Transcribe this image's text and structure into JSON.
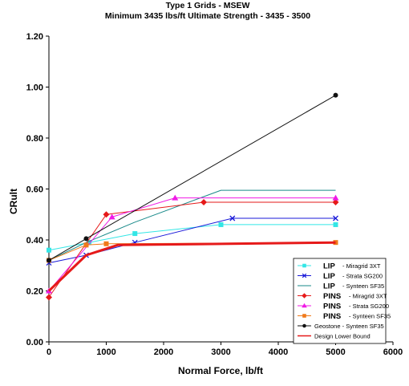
{
  "chart_data": {
    "type": "line",
    "title": "Type 1 Grids - MSEW",
    "subtitle": "Minimum 3435 lbs/ft Ultimate Strength - 3435 - 3500",
    "xlabel": "Normal Force, lb/ft",
    "ylabel": "CRult",
    "xlim": [
      0,
      6000
    ],
    "ylim": [
      0,
      1.2
    ],
    "xticks": [
      0,
      1000,
      2000,
      3000,
      4000,
      5000,
      6000
    ],
    "xtick_labels": [
      "0",
      "1000",
      "2000",
      "3000",
      "4000",
      "5000",
      "6000"
    ],
    "yticks": [
      0,
      0.2,
      0.4,
      0.6,
      0.8,
      1.0,
      1.2
    ],
    "ytick_labels": [
      "0.00",
      "0.20",
      "0.40",
      "0.60",
      "0.80",
      "1.00",
      "1.20"
    ],
    "grid": false,
    "legend_position": "bottom-right",
    "series": [
      {
        "tag": "LIP",
        "name": "- Miragrid 3XT",
        "color": "#33e6e6",
        "marker": "square",
        "width": 1,
        "x": [
          0,
          700,
          1500,
          3000,
          5000
        ],
        "y": [
          0.36,
          0.39,
          0.425,
          0.46,
          0.46
        ]
      },
      {
        "tag": "LIP",
        "name": "- Strata SG200",
        "color": "#1a1ad9",
        "marker": "x",
        "width": 1,
        "x": [
          0,
          650,
          1500,
          3200,
          5000
        ],
        "y": [
          0.31,
          0.34,
          0.39,
          0.485,
          0.485
        ]
      },
      {
        "tag": "LIP",
        "name": "- Synteen SF35",
        "color": "#1a8a8a",
        "marker": "none",
        "width": 1,
        "x": [
          0,
          650,
          1500,
          3000,
          5000
        ],
        "y": [
          0.32,
          0.39,
          0.47,
          0.595,
          0.595
        ]
      },
      {
        "tag": "PINS",
        "name": "- Miragrid 3XT",
        "color": "#e61a1a",
        "marker": "diamond",
        "width": 1,
        "x": [
          0,
          1000,
          2700,
          5000
        ],
        "y": [
          0.175,
          0.5,
          0.548,
          0.548
        ]
      },
      {
        "tag": "PINS",
        "name": "- Strata SG200",
        "color": "#f01ae6",
        "marker": "triangle",
        "width": 1,
        "x": [
          0,
          1100,
          2200,
          5000
        ],
        "y": [
          0.2,
          0.49,
          0.565,
          0.565
        ]
      },
      {
        "tag": "PINS",
        "name": "- Synteen SF35",
        "color": "#f07a1a",
        "marker": "square",
        "width": 1,
        "x": [
          0,
          650,
          1000,
          5000
        ],
        "y": [
          0.32,
          0.38,
          0.385,
          0.39
        ]
      },
      {
        "tag": "",
        "name": "Geostone - Synteen SF35",
        "color": "#111111",
        "marker": "circle",
        "width": 1,
        "x": [
          0,
          650,
          5000
        ],
        "y": [
          0.32,
          0.405,
          0.968
        ]
      },
      {
        "tag": "",
        "name": "Design Lower Bound",
        "color": "#e61a1a",
        "marker": "none",
        "width": 3,
        "x": [
          0,
          650,
          1200,
          5000
        ],
        "y": [
          0.2,
          0.34,
          0.38,
          0.39
        ]
      }
    ]
  }
}
